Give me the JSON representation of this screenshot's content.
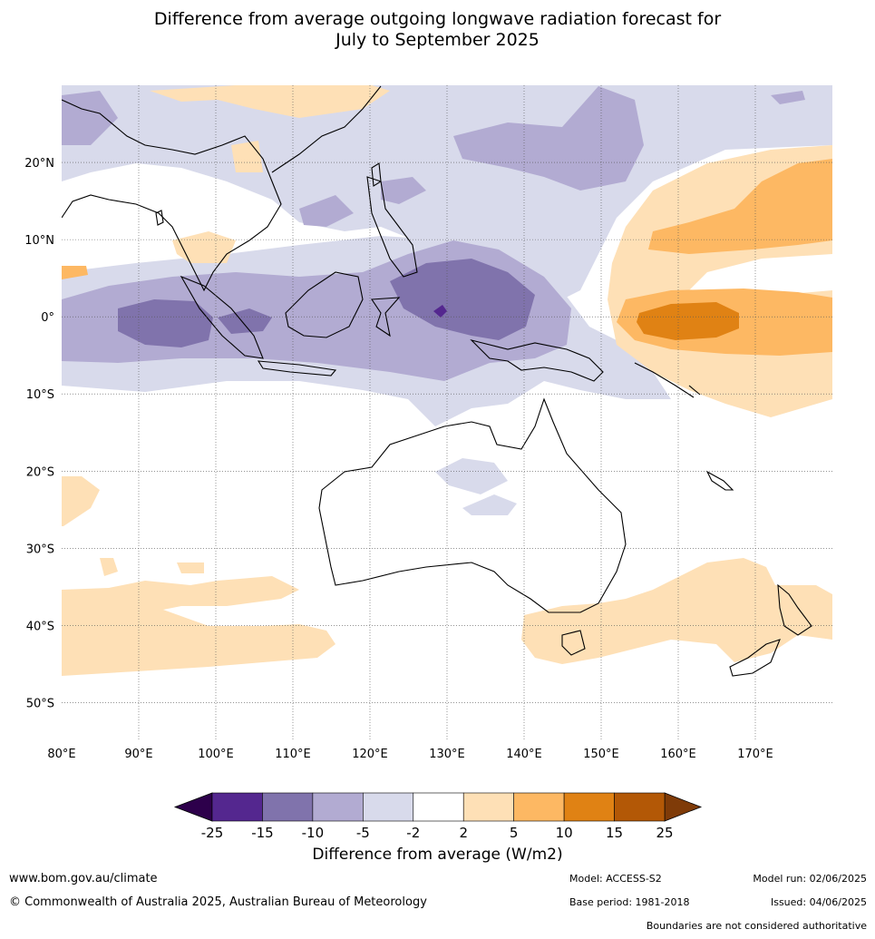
{
  "title": {
    "line1": "Difference from average outgoing longwave radiation forecast for",
    "line2": "July to September 2025"
  },
  "map": {
    "lon_range": [
      80,
      180
    ],
    "lat_range": [
      -55,
      30
    ],
    "lon_ticks": [
      {
        "value": 80,
        "label": "80°E"
      },
      {
        "value": 90,
        "label": "90°E"
      },
      {
        "value": 100,
        "label": "100°E"
      },
      {
        "value": 110,
        "label": "110°E"
      },
      {
        "value": 120,
        "label": "120°E"
      },
      {
        "value": 130,
        "label": "130°E"
      },
      {
        "value": 140,
        "label": "140°E"
      },
      {
        "value": 150,
        "label": "150°E"
      },
      {
        "value": 160,
        "label": "160°E"
      },
      {
        "value": 170,
        "label": "170°E"
      }
    ],
    "lat_ticks": [
      {
        "value": 20,
        "label": "20°N"
      },
      {
        "value": 10,
        "label": "10°N"
      },
      {
        "value": 0,
        "label": "0°"
      },
      {
        "value": -10,
        "label": "10°S"
      },
      {
        "value": -20,
        "label": "20°S"
      },
      {
        "value": -30,
        "label": "30°S"
      },
      {
        "value": -40,
        "label": "40°S"
      },
      {
        "value": -50,
        "label": "50°S"
      }
    ]
  },
  "colorbar": {
    "bins": [
      {
        "label": "-25",
        "color": "#54278f"
      },
      {
        "label": "-15",
        "color": "#8073ac"
      },
      {
        "label": "-10",
        "color": "#b2abd2"
      },
      {
        "label": "-5",
        "color": "#d8daeb"
      },
      {
        "label": "-2",
        "color": "#ffffff"
      },
      {
        "label": "2",
        "color": "#fee0b6"
      },
      {
        "label": "5",
        "color": "#fdb863"
      },
      {
        "label": "10",
        "color": "#e08214"
      },
      {
        "label": "15",
        "color": "#b35806"
      }
    ],
    "last_label": "25",
    "under_color": "#2d004b",
    "over_color": "#7f3b08",
    "title": "Difference from average (W/m2)"
  },
  "footer": {
    "website": "www.bom.gov.au/climate",
    "copyright": "© Commonwealth of Australia 2025, Australian Bureau of Meteorology",
    "model": "Model: ACCESS-S2",
    "base_period": "Base period: 1981-2018",
    "model_run": "Model run: 02/06/2025",
    "issued": "Issued: 04/06/2025",
    "disclaimer": "Boundaries are not considered authoritative"
  }
}
